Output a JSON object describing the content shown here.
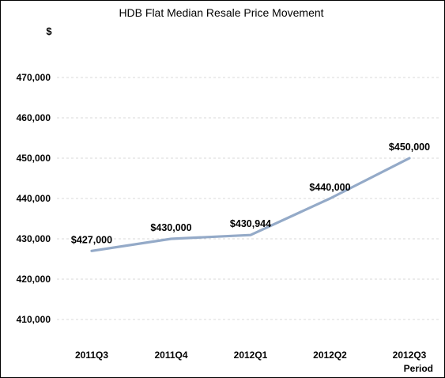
{
  "chart_data": {
    "type": "line",
    "title": "HDB Flat Median Resale Price Movement",
    "ylabel": "$",
    "xlabel": "Period",
    "categories": [
      "2011Q3",
      "2011Q4",
      "2012Q1",
      "2012Q2",
      "2012Q3"
    ],
    "series": [
      {
        "values": [
          427000,
          430000,
          430944,
          440000,
          450000
        ],
        "data_labels": [
          "$427,000",
          "$430,000",
          "$430,944",
          "$440,000",
          "$450,000"
        ],
        "color": "#94aac8"
      }
    ],
    "yticks": [
      410000,
      420000,
      430000,
      440000,
      450000,
      460000,
      470000
    ],
    "ytick_labels": [
      "410,000",
      "420,000",
      "430,000",
      "440,000",
      "450,000",
      "460,000",
      "470,000"
    ],
    "ylim": [
      400000,
      480000
    ],
    "grid": true,
    "legend": "none"
  }
}
